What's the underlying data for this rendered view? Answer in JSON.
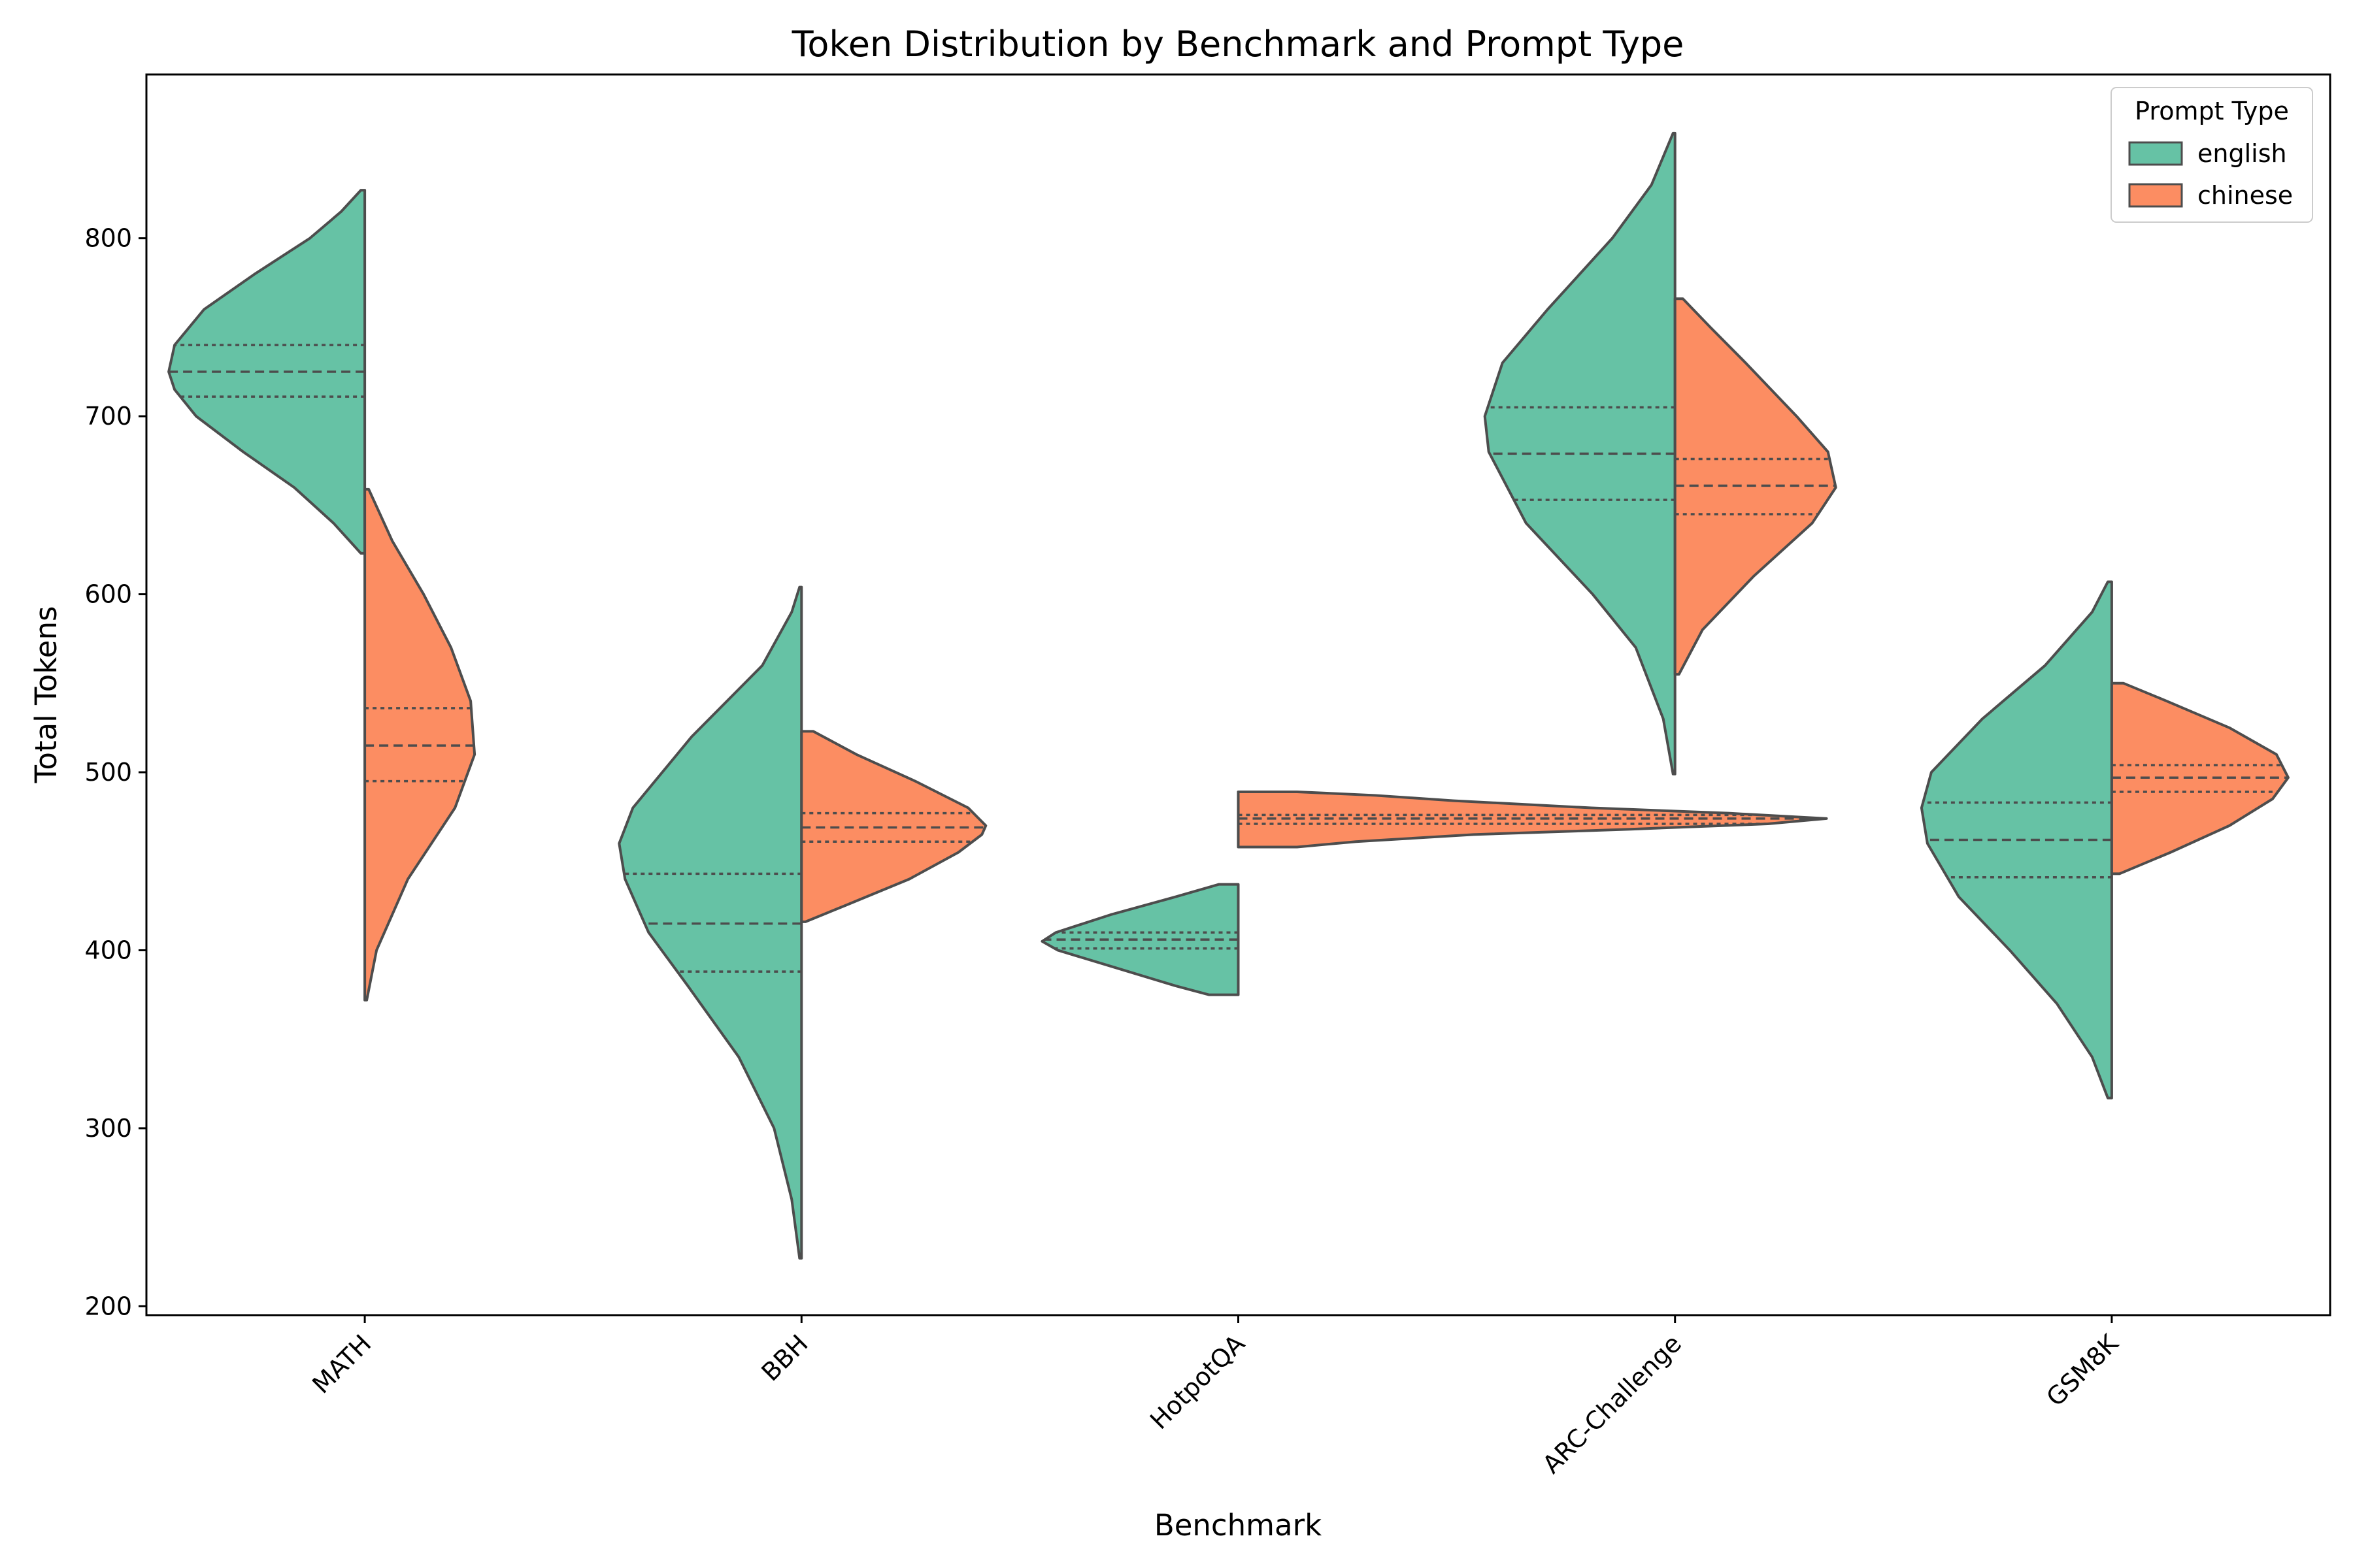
{
  "chart_data": {
    "type": "violin",
    "title": "Token Distribution by Benchmark and Prompt Type",
    "xlabel": "Benchmark",
    "ylabel": "Total Tokens",
    "ylim": [
      195,
      892
    ],
    "yticks": [
      "200",
      "300",
      "400",
      "500",
      "600",
      "700",
      "800"
    ],
    "categories": [
      "MATH",
      "BBH",
      "HotpotQA",
      "ARC-Challenge",
      "GSM8K"
    ],
    "split": true,
    "inner": "quartile",
    "legend": {
      "title": "Prompt Type",
      "placement": "top-right"
    },
    "series": [
      {
        "name": "english",
        "color": "#66c2a5",
        "violins": [
          {
            "min": 623,
            "max": 827,
            "q1": 711,
            "median": 725,
            "q3": 740,
            "profile": [
              [
                623,
                0.02
              ],
              [
                640,
                0.16
              ],
              [
                660,
                0.36
              ],
              [
                680,
                0.62
              ],
              [
                700,
                0.86
              ],
              [
                715,
                0.97
              ],
              [
                725,
                1.0
              ],
              [
                740,
                0.97
              ],
              [
                760,
                0.82
              ],
              [
                780,
                0.56
              ],
              [
                800,
                0.28
              ],
              [
                815,
                0.12
              ],
              [
                827,
                0.02
              ]
            ]
          },
          {
            "min": 227,
            "max": 604,
            "q1": 388,
            "median": 415,
            "q3": 443,
            "profile": [
              [
                227,
                0.01
              ],
              [
                260,
                0.05
              ],
              [
                300,
                0.14
              ],
              [
                340,
                0.32
              ],
              [
                380,
                0.58
              ],
              [
                410,
                0.78
              ],
              [
                440,
                0.9
              ],
              [
                460,
                0.93
              ],
              [
                480,
                0.86
              ],
              [
                520,
                0.56
              ],
              [
                560,
                0.2
              ],
              [
                590,
                0.05
              ],
              [
                604,
                0.01
              ]
            ]
          },
          {
            "min": 375,
            "max": 437,
            "q1": 401,
            "median": 406,
            "q3": 410,
            "profile": [
              [
                375,
                0.15
              ],
              [
                380,
                0.32
              ],
              [
                390,
                0.62
              ],
              [
                400,
                0.92
              ],
              [
                405,
                1.0
              ],
              [
                410,
                0.93
              ],
              [
                420,
                0.65
              ],
              [
                430,
                0.32
              ],
              [
                437,
                0.1
              ]
            ]
          },
          {
            "min": 499,
            "max": 859,
            "q1": 653,
            "median": 679,
            "q3": 705,
            "profile": [
              [
                499,
                0.01
              ],
              [
                530,
                0.06
              ],
              [
                570,
                0.2
              ],
              [
                600,
                0.42
              ],
              [
                640,
                0.76
              ],
              [
                680,
                0.95
              ],
              [
                700,
                0.97
              ],
              [
                730,
                0.88
              ],
              [
                760,
                0.65
              ],
              [
                800,
                0.32
              ],
              [
                830,
                0.12
              ],
              [
                859,
                0.01
              ]
            ]
          },
          {
            "min": 317,
            "max": 607,
            "q1": 441,
            "median": 462,
            "q3": 483,
            "profile": [
              [
                317,
                0.02
              ],
              [
                340,
                0.1
              ],
              [
                370,
                0.28
              ],
              [
                400,
                0.52
              ],
              [
                430,
                0.78
              ],
              [
                460,
                0.94
              ],
              [
                480,
                0.97
              ],
              [
                500,
                0.92
              ],
              [
                530,
                0.66
              ],
              [
                560,
                0.34
              ],
              [
                590,
                0.1
              ],
              [
                607,
                0.02
              ]
            ]
          }
        ]
      },
      {
        "name": "chinese",
        "color": "#fc8d62",
        "violins": [
          {
            "min": 372,
            "max": 659,
            "q1": 495,
            "median": 515,
            "q3": 536,
            "profile": [
              [
                372,
                0.01
              ],
              [
                400,
                0.06
              ],
              [
                440,
                0.22
              ],
              [
                480,
                0.46
              ],
              [
                510,
                0.56
              ],
              [
                540,
                0.54
              ],
              [
                570,
                0.44
              ],
              [
                600,
                0.3
              ],
              [
                630,
                0.14
              ],
              [
                659,
                0.02
              ]
            ]
          },
          {
            "min": 416,
            "max": 523,
            "q1": 461,
            "median": 469,
            "q3": 477,
            "profile": [
              [
                416,
                0.02
              ],
              [
                425,
                0.22
              ],
              [
                440,
                0.55
              ],
              [
                455,
                0.8
              ],
              [
                465,
                0.92
              ],
              [
                470,
                0.94
              ],
              [
                480,
                0.85
              ],
              [
                495,
                0.58
              ],
              [
                510,
                0.28
              ],
              [
                523,
                0.06
              ]
            ]
          },
          {
            "min": 458,
            "max": 489,
            "q1": 471,
            "median": 474,
            "q3": 476,
            "profile": [
              [
                458,
                0.3
              ],
              [
                461,
                0.6
              ],
              [
                465,
                1.2
              ],
              [
                468,
                2.0
              ],
              [
                471,
                2.7
              ],
              [
                474,
                3.0
              ],
              [
                477,
                2.5
              ],
              [
                480,
                1.8
              ],
              [
                484,
                1.1
              ],
              [
                487,
                0.7
              ],
              [
                489,
                0.3
              ]
            ]
          },
          {
            "min": 555,
            "max": 766,
            "q1": 645,
            "median": 661,
            "q3": 676,
            "profile": [
              [
                555,
                0.02
              ],
              [
                580,
                0.14
              ],
              [
                610,
                0.4
              ],
              [
                640,
                0.7
              ],
              [
                660,
                0.82
              ],
              [
                680,
                0.78
              ],
              [
                700,
                0.62
              ],
              [
                730,
                0.36
              ],
              [
                750,
                0.18
              ],
              [
                766,
                0.04
              ]
            ]
          },
          {
            "min": 443,
            "max": 550,
            "q1": 489,
            "median": 497,
            "q3": 504,
            "profile": [
              [
                443,
                0.04
              ],
              [
                455,
                0.3
              ],
              [
                470,
                0.6
              ],
              [
                485,
                0.82
              ],
              [
                497,
                0.9
              ],
              [
                510,
                0.84
              ],
              [
                525,
                0.6
              ],
              [
                540,
                0.28
              ],
              [
                550,
                0.06
              ]
            ]
          }
        ]
      }
    ]
  }
}
